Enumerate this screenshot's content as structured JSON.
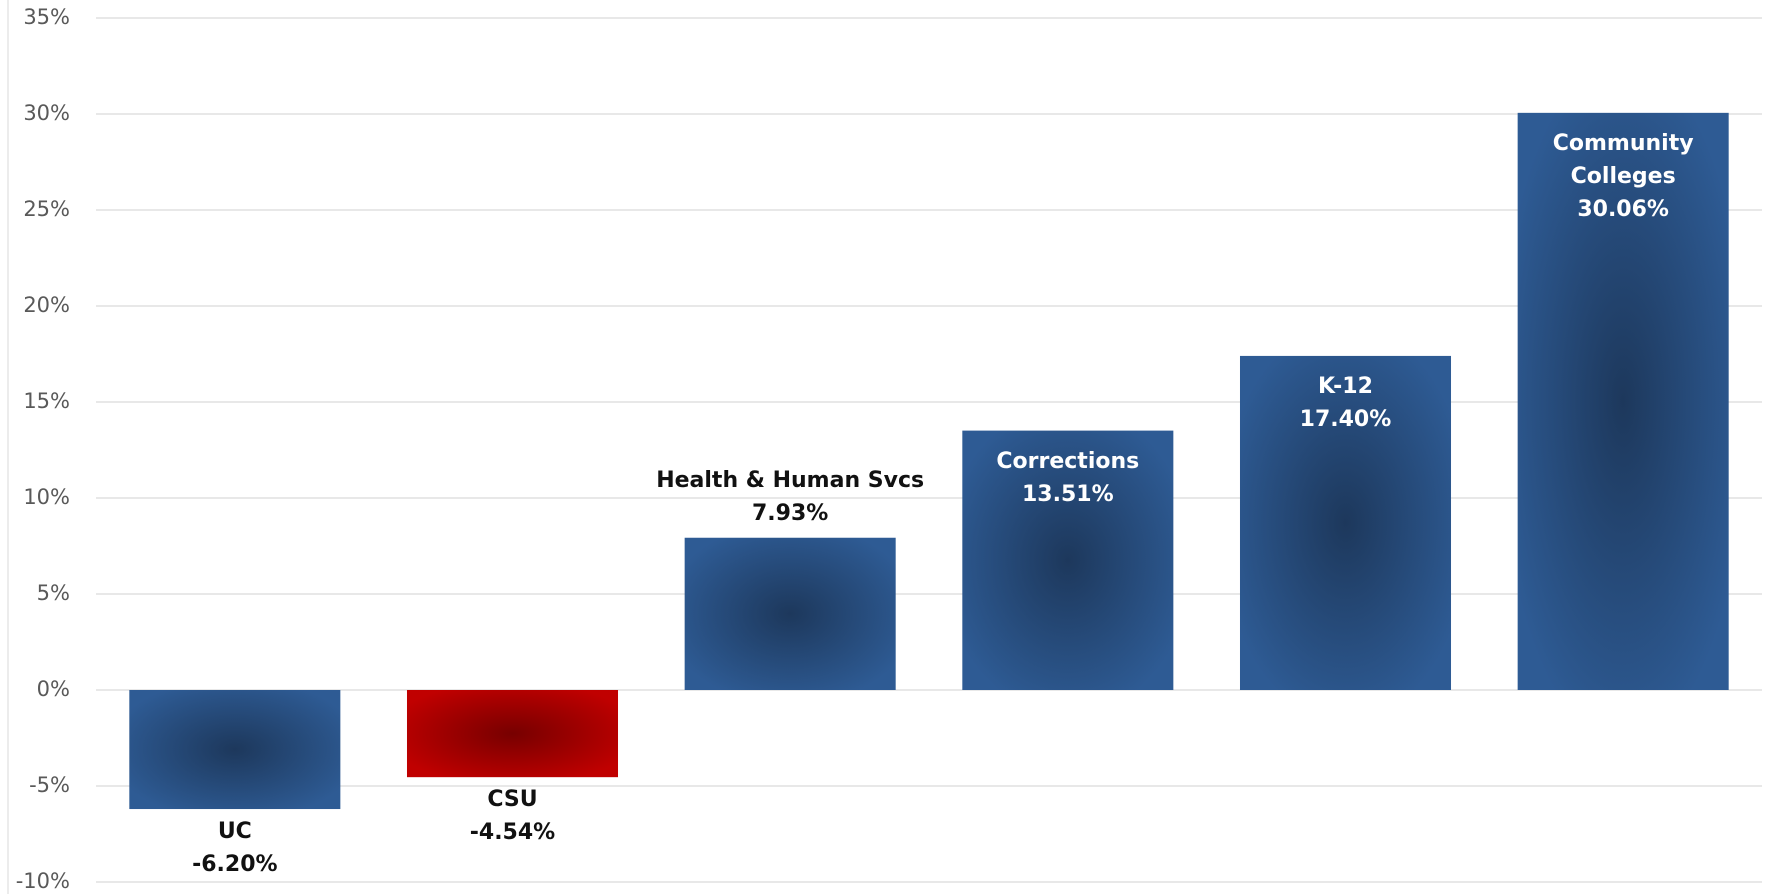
{
  "chart_data": {
    "type": "bar",
    "categories": [
      "UC",
      "CSU",
      "Health & Human Svcs",
      "Corrections",
      "K-12",
      "Community Colleges"
    ],
    "values": [
      -6.2,
      -4.54,
      7.93,
      13.51,
      17.4,
      30.06
    ],
    "value_labels": [
      "-6.20%",
      "-4.54%",
      "7.93%",
      "13.51%",
      "17.40%",
      "30.06%"
    ],
    "colors": [
      "#2e5b94",
      "#c00000",
      "#2e5b94",
      "#2e5b94",
      "#2e5b94",
      "#2e5b94"
    ],
    "ylim": [
      -10,
      35
    ],
    "yticks": [
      {
        "value": -10,
        "label": "-10%"
      },
      {
        "value": -5,
        "label": "-5%"
      },
      {
        "value": 0,
        "label": "0%"
      },
      {
        "value": 5,
        "label": "5%"
      },
      {
        "value": 10,
        "label": "10%"
      },
      {
        "value": 15,
        "label": "15%"
      },
      {
        "value": 20,
        "label": "20%"
      },
      {
        "value": 25,
        "label": "25%"
      },
      {
        "value": 30,
        "label": "30%"
      },
      {
        "value": 35,
        "label": "35%"
      }
    ],
    "grid": true
  }
}
